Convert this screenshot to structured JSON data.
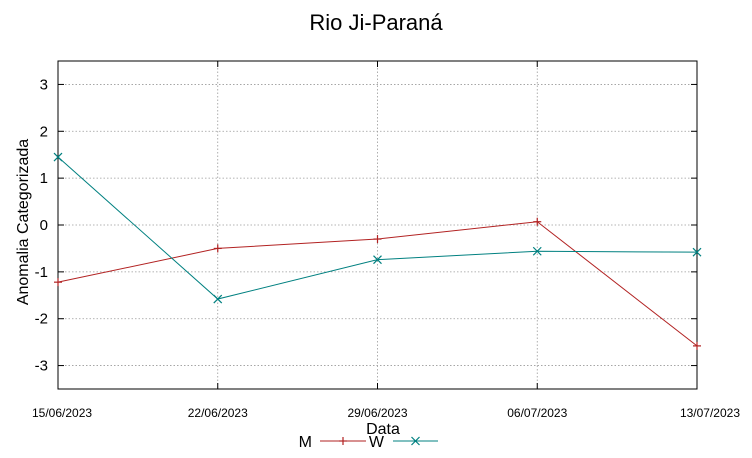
{
  "chart_data": {
    "type": "line",
    "title": "Rio Ji-Paraná",
    "xlabel": "Data",
    "ylabel": "Anomalia Categorizada",
    "categories": [
      "15/06/2023",
      "22/06/2023",
      "29/06/2023",
      "06/07/2023",
      "13/07/2023"
    ],
    "ylim": [
      -3.5,
      3.5
    ],
    "yticks": [
      3,
      2,
      1,
      0,
      -1,
      -2,
      -3
    ],
    "ytick_labels": [
      "3",
      "2",
      "1",
      "0",
      "-1",
      "-2",
      "-3"
    ],
    "grid": true,
    "legend_position": "bottom",
    "series": [
      {
        "name": "M",
        "color": "#b22222",
        "marker": "plus",
        "values": [
          -1.22,
          -0.5,
          -0.3,
          0.07,
          -2.58
        ]
      },
      {
        "name": "W",
        "color": "#008080",
        "marker": "cross",
        "values": [
          1.45,
          -1.58,
          -0.74,
          -0.56,
          -0.58
        ]
      }
    ]
  }
}
